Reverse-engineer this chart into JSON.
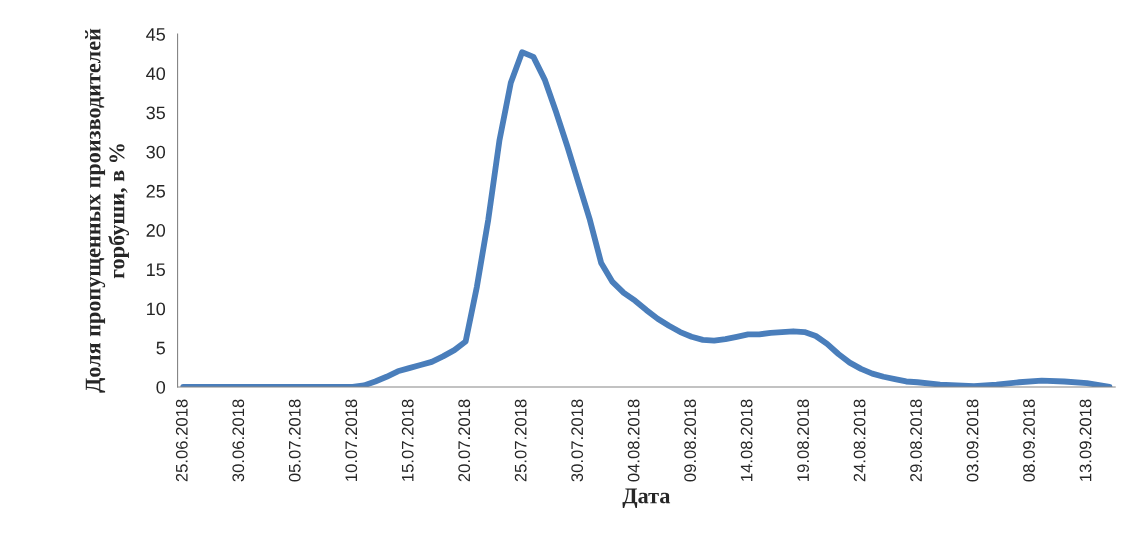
{
  "chart_data": {
    "type": "line",
    "xlabel": "Дата",
    "ylabel": "Доля пропущенных производителей\nгорбуши, в %",
    "x": [
      "2018-06-25",
      "2018-07-10",
      "2018-07-11",
      "2018-07-12",
      "2018-07-13",
      "2018-07-14",
      "2018-07-15",
      "2018-07-16",
      "2018-07-17",
      "2018-07-18",
      "2018-07-19",
      "2018-07-20",
      "2018-07-21",
      "2018-07-22",
      "2018-07-23",
      "2018-07-24",
      "2018-07-25",
      "2018-07-26",
      "2018-07-27",
      "2018-07-28",
      "2018-07-29",
      "2018-07-30",
      "2018-07-31",
      "2018-08-01",
      "2018-08-02",
      "2018-08-03",
      "2018-08-04",
      "2018-08-05",
      "2018-08-06",
      "2018-08-07",
      "2018-08-08",
      "2018-08-09",
      "2018-08-10",
      "2018-08-11",
      "2018-08-12",
      "2018-08-13",
      "2018-08-14",
      "2018-08-15",
      "2018-08-16",
      "2018-08-17",
      "2018-08-18",
      "2018-08-19",
      "2018-08-20",
      "2018-08-21",
      "2018-08-22",
      "2018-08-23",
      "2018-08-24",
      "2018-08-25",
      "2018-08-26",
      "2018-08-27",
      "2018-08-28",
      "2018-08-29",
      "2018-08-31",
      "2018-09-03",
      "2018-09-05",
      "2018-09-07",
      "2018-09-09",
      "2018-09-11",
      "2018-09-13",
      "2018-09-15"
    ],
    "series": [
      {
        "color": "#4a7ebb",
        "values": [
          0,
          0,
          0.2,
          0.7,
          1.3,
          2.0,
          2.4,
          2.8,
          3.2,
          3.9,
          4.7,
          5.8,
          12.8,
          21.3,
          31.5,
          38.8,
          42.7,
          42.1,
          39.2,
          35.1,
          30.7,
          26.0,
          21.3,
          15.8,
          13.4,
          12.0,
          11.0,
          9.8,
          8.7,
          7.8,
          7.0,
          6.4,
          6.0,
          5.9,
          6.1,
          6.4,
          6.7,
          6.7,
          6.9,
          7.0,
          7.1,
          7.0,
          6.5,
          5.5,
          4.2,
          3.1,
          2.3,
          1.7,
          1.3,
          1.0,
          0.7,
          0.6,
          0.3,
          0.1,
          0.3,
          0.6,
          0.8,
          0.7,
          0.5,
          0
        ]
      }
    ],
    "xlim": [
      "2018-06-24T12:00",
      "2018-09-15T12:00"
    ],
    "xticks": [
      {
        "value": "2018-06-25",
        "label": "25.06.2018"
      },
      {
        "value": "2018-06-30",
        "label": "30.06.2018"
      },
      {
        "value": "2018-07-05",
        "label": "05.07.2018"
      },
      {
        "value": "2018-07-10",
        "label": "10.07.2018"
      },
      {
        "value": "2018-07-15",
        "label": "15.07.2018"
      },
      {
        "value": "2018-07-20",
        "label": "20.07.2018"
      },
      {
        "value": "2018-07-25",
        "label": "25.07.2018"
      },
      {
        "value": "2018-07-30",
        "label": "30.07.2018"
      },
      {
        "value": "2018-08-04",
        "label": "04.08.2018"
      },
      {
        "value": "2018-08-09",
        "label": "09.08.2018"
      },
      {
        "value": "2018-08-14",
        "label": "14.08.2018"
      },
      {
        "value": "2018-08-19",
        "label": "19.08.2018"
      },
      {
        "value": "2018-08-24",
        "label": "24.08.2018"
      },
      {
        "value": "2018-08-29",
        "label": "29.08.2018"
      },
      {
        "value": "2018-09-03",
        "label": "03.09.2018"
      },
      {
        "value": "2018-09-08",
        "label": "08.09.2018"
      },
      {
        "value": "2018-09-13",
        "label": "13.09.2018"
      }
    ],
    "ylim": [
      0,
      45
    ],
    "yticks": [
      0,
      5,
      10,
      15,
      20,
      25,
      30,
      35,
      40,
      45
    ],
    "grid": false,
    "legend": false,
    "marker": "none",
    "line_style": "solid"
  }
}
